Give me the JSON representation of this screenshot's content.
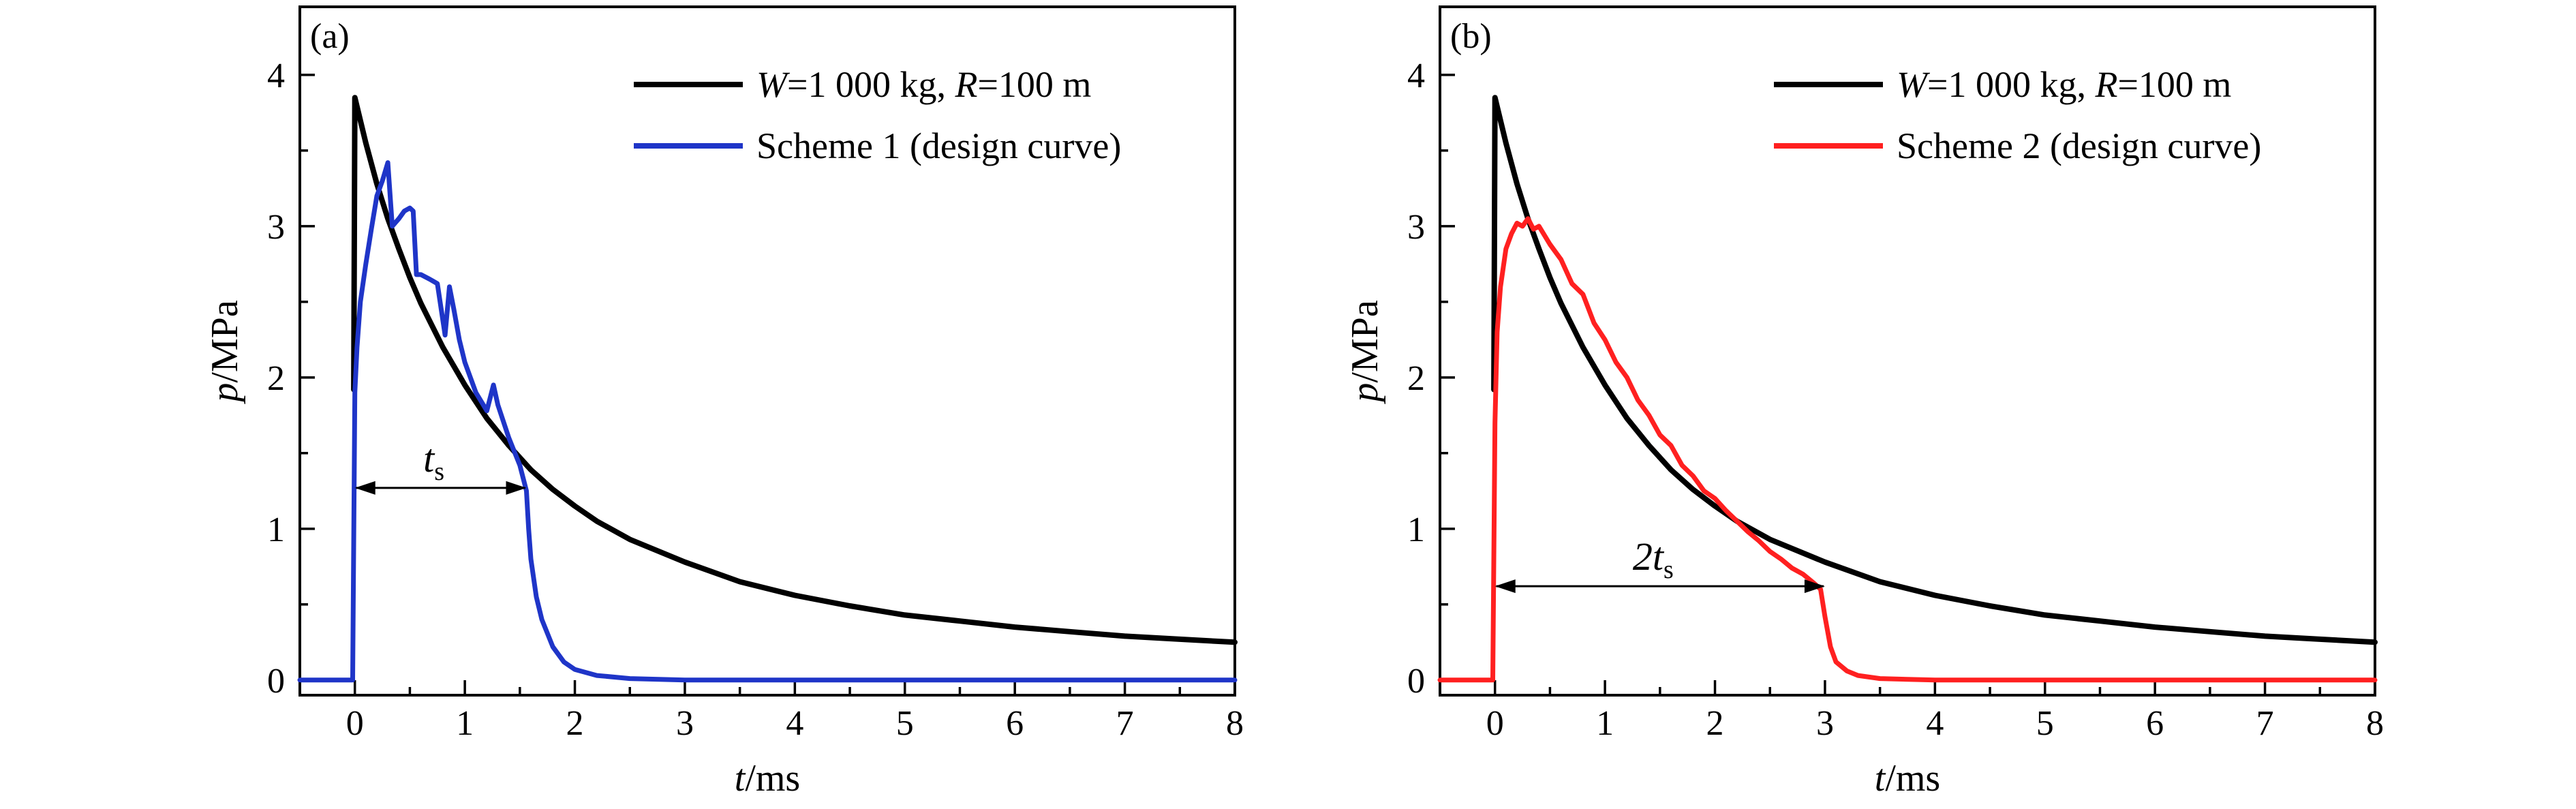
{
  "chart_data": [
    {
      "type": "line",
      "panel_label": "(a)",
      "xlabel": "t/ms",
      "ylabel": "p/MPa",
      "xlim": [
        -0.5,
        8
      ],
      "ylim": [
        -0.1,
        4.45
      ],
      "xticks": [
        0,
        1,
        2,
        3,
        4,
        5,
        6,
        7,
        8
      ],
      "yticks": [
        0,
        1,
        2,
        3,
        4
      ],
      "legend_position": "top-right",
      "series": [
        {
          "name": "W=1 000 kg, R=100 m",
          "color": "#000000",
          "x": [
            -0.01,
            0.0,
            0.1,
            0.2,
            0.3,
            0.4,
            0.5,
            0.6,
            0.8,
            1.0,
            1.2,
            1.4,
            1.6,
            1.8,
            2.0,
            2.2,
            2.5,
            3.0,
            3.5,
            4.0,
            4.5,
            5.0,
            5.5,
            6.0,
            6.5,
            7.0,
            7.5,
            8.0
          ],
          "values": [
            1.92,
            3.85,
            3.55,
            3.28,
            3.05,
            2.85,
            2.66,
            2.49,
            2.2,
            1.95,
            1.73,
            1.55,
            1.39,
            1.26,
            1.15,
            1.05,
            0.93,
            0.78,
            0.65,
            0.56,
            0.49,
            0.43,
            0.39,
            0.35,
            0.32,
            0.29,
            0.27,
            0.25
          ]
        },
        {
          "name": "Scheme 1 (design curve)",
          "color": "#1f35c8",
          "x": [
            -0.5,
            -0.02,
            0.0,
            0.02,
            0.05,
            0.1,
            0.15,
            0.2,
            0.25,
            0.3,
            0.34,
            0.4,
            0.45,
            0.5,
            0.53,
            0.56,
            0.6,
            0.68,
            0.75,
            0.82,
            0.86,
            0.9,
            0.95,
            1.0,
            1.1,
            1.2,
            1.26,
            1.3,
            1.4,
            1.5,
            1.56,
            1.58,
            1.6,
            1.65,
            1.7,
            1.8,
            1.9,
            2.0,
            2.2,
            2.5,
            3.0,
            3.5,
            4.0,
            5.0,
            6.0,
            7.0,
            8.0
          ],
          "values": [
            0,
            0,
            1.9,
            2.2,
            2.5,
            2.75,
            2.98,
            3.2,
            3.3,
            3.42,
            3.0,
            3.05,
            3.1,
            3.12,
            3.1,
            2.68,
            2.68,
            2.65,
            2.62,
            2.28,
            2.6,
            2.45,
            2.25,
            2.1,
            1.9,
            1.78,
            1.95,
            1.82,
            1.6,
            1.42,
            1.25,
            1.0,
            0.8,
            0.55,
            0.4,
            0.22,
            0.12,
            0.07,
            0.03,
            0.01,
            0.0,
            0.0,
            0.0,
            0.0,
            0.0,
            0.0,
            0.0
          ]
        }
      ],
      "annotation": {
        "text_main": "t",
        "text_sub": "s",
        "x_start": 0.0,
        "x_end": 1.56,
        "y": 1.27
      }
    },
    {
      "type": "line",
      "panel_label": "(b)",
      "xlabel": "t/ms",
      "ylabel": "p/MPa",
      "xlim": [
        -0.5,
        8
      ],
      "ylim": [
        -0.1,
        4.45
      ],
      "xticks": [
        0,
        1,
        2,
        3,
        4,
        5,
        6,
        7,
        8
      ],
      "yticks": [
        0,
        1,
        2,
        3,
        4
      ],
      "legend_position": "top-right",
      "series": [
        {
          "name": "W=1 000 kg, R=100 m",
          "color": "#000000",
          "x": [
            -0.01,
            0.0,
            0.1,
            0.2,
            0.3,
            0.4,
            0.5,
            0.6,
            0.8,
            1.0,
            1.2,
            1.4,
            1.6,
            1.8,
            2.0,
            2.2,
            2.5,
            3.0,
            3.5,
            4.0,
            4.5,
            5.0,
            5.5,
            6.0,
            6.5,
            7.0,
            7.5,
            8.0
          ],
          "values": [
            1.92,
            3.85,
            3.55,
            3.28,
            3.05,
            2.85,
            2.66,
            2.49,
            2.2,
            1.95,
            1.73,
            1.55,
            1.39,
            1.26,
            1.15,
            1.05,
            0.93,
            0.78,
            0.65,
            0.56,
            0.49,
            0.43,
            0.39,
            0.35,
            0.32,
            0.29,
            0.27,
            0.25
          ]
        },
        {
          "name": "Scheme 2 (design curve)",
          "color": "#ff2020",
          "x": [
            -0.5,
            -0.02,
            0.0,
            0.02,
            0.05,
            0.1,
            0.15,
            0.2,
            0.25,
            0.3,
            0.35,
            0.4,
            0.5,
            0.6,
            0.7,
            0.8,
            0.9,
            1.0,
            1.1,
            1.2,
            1.3,
            1.4,
            1.5,
            1.6,
            1.7,
            1.8,
            1.9,
            2.0,
            2.1,
            2.2,
            2.3,
            2.4,
            2.5,
            2.6,
            2.7,
            2.8,
            2.9,
            2.96,
            3.0,
            3.05,
            3.1,
            3.2,
            3.3,
            3.5,
            4.0,
            5.0,
            6.0,
            6.7,
            7.0,
            7.5,
            8.0
          ],
          "values": [
            0,
            0,
            1.7,
            2.3,
            2.6,
            2.85,
            2.95,
            3.02,
            3.0,
            3.05,
            2.98,
            3.0,
            2.88,
            2.78,
            2.62,
            2.55,
            2.36,
            2.25,
            2.1,
            2.0,
            1.85,
            1.75,
            1.62,
            1.55,
            1.42,
            1.35,
            1.25,
            1.2,
            1.12,
            1.05,
            0.98,
            0.92,
            0.85,
            0.8,
            0.74,
            0.7,
            0.64,
            0.6,
            0.42,
            0.22,
            0.12,
            0.06,
            0.03,
            0.01,
            0.0,
            0.0,
            0.0,
            0.0,
            0.0,
            0.0,
            0.0
          ]
        }
      ],
      "annotation": {
        "text_main": "2t",
        "text_sub": "s",
        "x_start": 0.0,
        "x_end": 3.0,
        "y": 0.62
      }
    }
  ]
}
